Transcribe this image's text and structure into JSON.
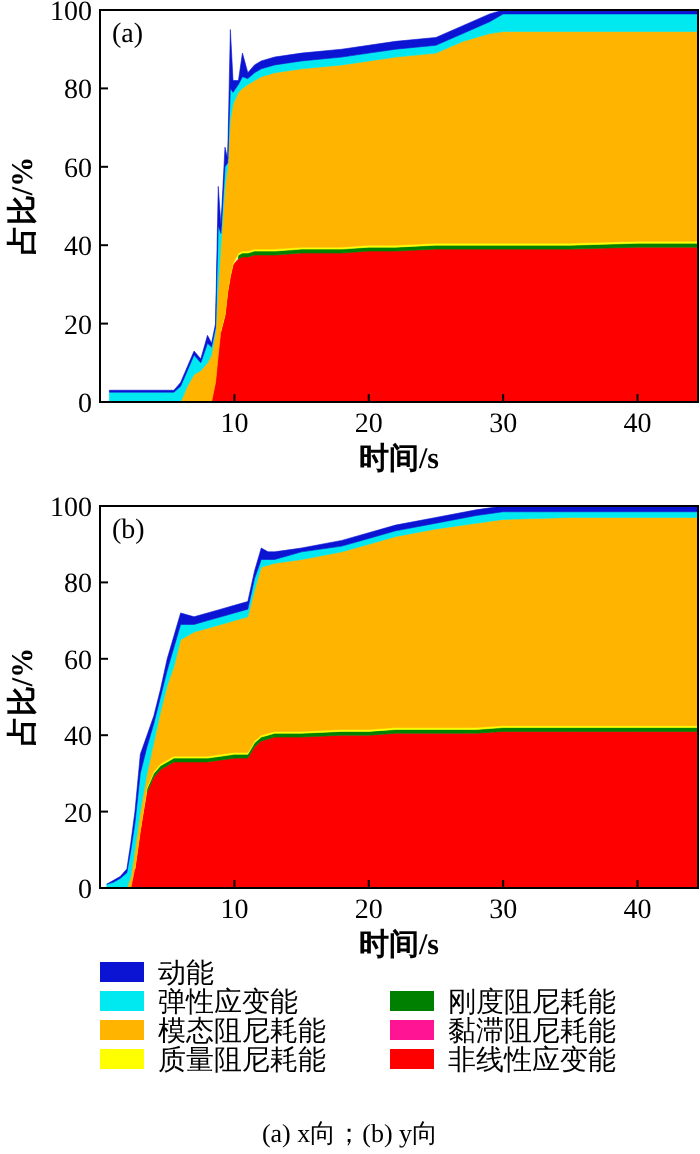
{
  "chart_data": [
    {
      "type": "area",
      "stacked": true,
      "xlabel": "时间/s",
      "ylabel": "占比/%",
      "annotations": [
        "(a)"
      ],
      "xlim": [
        0,
        44.5
      ],
      "ylim": [
        0,
        100
      ],
      "xticks": [
        10,
        20,
        30,
        40
      ],
      "yticks": [
        0,
        20,
        40,
        60,
        80,
        100
      ],
      "grid": false,
      "legend": false,
      "x": [
        0.7,
        2,
        4,
        5.5,
        6,
        6.5,
        7,
        7.5,
        8,
        8.3,
        8.6,
        8.8,
        9,
        9.3,
        9.5,
        9.7,
        9.9,
        10.3,
        10.6,
        11,
        11.5,
        12,
        13,
        15,
        18,
        20,
        22,
        25,
        27,
        29,
        30,
        35,
        40,
        44.5
      ],
      "series": [
        {
          "color": "#ff0000",
          "values": [
            0,
            0,
            0,
            0,
            0,
            0,
            0,
            0,
            0,
            0,
            5,
            12,
            18,
            22,
            28,
            32,
            35,
            36.5,
            37,
            37,
            37.5,
            37.5,
            37.5,
            38,
            38,
            38.5,
            38.5,
            39,
            39,
            39,
            39,
            39,
            39.5,
            39.5
          ]
        },
        {
          "values": [
            null,
            null,
            null,
            null,
            null,
            null,
            null,
            null,
            null,
            null,
            null,
            null,
            null,
            null,
            null,
            null,
            null,
            null,
            null,
            null,
            null,
            null,
            null,
            null,
            null,
            null,
            null,
            null,
            null,
            null,
            null,
            null,
            null,
            null
          ]
        },
        {
          "color": "#008000",
          "values": [
            null,
            null,
            null,
            null,
            null,
            null,
            null,
            null,
            null,
            null,
            null,
            null,
            null,
            null,
            null,
            null,
            null,
            1,
            1,
            1,
            1,
            1,
            1,
            1,
            1,
            1,
            1,
            1,
            1,
            1,
            1,
            1,
            1,
            1
          ]
        },
        {
          "color": "#ffff00",
          "values": [
            null,
            null,
            null,
            null,
            null,
            null,
            null,
            null,
            null,
            null,
            null,
            null,
            0.5,
            0.5,
            0.5,
            0.5,
            0.5,
            0.5,
            0.5,
            0.5,
            0.5,
            0.5,
            0.5,
            0.5,
            0.5,
            0.5,
            0.5,
            0.5,
            0.5,
            0.5,
            0.5,
            0.5,
            0.5,
            0.5
          ]
        },
        {
          "color": "#ffb400",
          "values": [
            0,
            0,
            0,
            0,
            0,
            4,
            7,
            8,
            10,
            12,
            13,
            18,
            21.5,
            32.5,
            31.5,
            39.5,
            40.5,
            41,
            41.5,
            42.5,
            43,
            44,
            45,
            45.5,
            46.5,
            47,
            48,
            48.5,
            51.5,
            53.5,
            54,
            54,
            53.5,
            53.5
          ]
        },
        {
          "color": "#00e8f0",
          "values": [
            2.5,
            2.5,
            2.5,
            2.5,
            4,
            4,
            5,
            2,
            5,
            2,
            1,
            15,
            3,
            5,
            1,
            8,
            3,
            2,
            3,
            1.5,
            2,
            2,
            2,
            2,
            2,
            2,
            2,
            2,
            2,
            3,
            4.5,
            4.5,
            4.5,
            4.5
          ]
        },
        {
          "color": "#0a14d2",
          "values": [
            0.5,
            0.5,
            0.5,
            0.5,
            1,
            1,
            1,
            1,
            2,
            1,
            1,
            10,
            2,
            5,
            1,
            15,
            3,
            1,
            6,
            1.5,
            2,
            2,
            2,
            2,
            2,
            2,
            2,
            2,
            2,
            2,
            1,
            1,
            1,
            1
          ]
        }
      ]
    },
    {
      "type": "area",
      "stacked": true,
      "xlabel": "时间/s",
      "ylabel": "占比/%",
      "annotations": [
        "(b)",
        "(a) x向；(b) y向"
      ],
      "xlim": [
        0,
        44.5
      ],
      "ylim": [
        0,
        100
      ],
      "xticks": [
        10,
        20,
        30,
        40
      ],
      "yticks": [
        0,
        20,
        40,
        60,
        80,
        100
      ],
      "grid": false,
      "legend": "bottom",
      "x": [
        0.5,
        1,
        1.5,
        2,
        2.3,
        2.6,
        3,
        3.5,
        4,
        4.5,
        5,
        5.5,
        6,
        7,
        8,
        9,
        10,
        11,
        11.5,
        12,
        12.5,
        13,
        15,
        18,
        20,
        22,
        25,
        28,
        30,
        35,
        40,
        44.5
      ],
      "series": [
        {
          "name": "非线性应变能",
          "color": "#ff0000",
          "values": [
            0,
            0,
            0,
            0,
            0,
            5,
            15,
            25,
            29,
            31,
            32,
            33,
            33,
            33,
            33,
            33.5,
            34,
            34,
            37,
            38.5,
            39,
            39.5,
            39.5,
            40,
            40,
            40.5,
            40.5,
            40.5,
            41,
            41,
            41,
            41
          ]
        },
        {
          "name": "黏滞阻尼耗能",
          "color": "#ff1493",
          "values": [
            null,
            null,
            null,
            null,
            null,
            null,
            null,
            null,
            null,
            null,
            null,
            null,
            null,
            null,
            null,
            null,
            null,
            null,
            null,
            null,
            null,
            null,
            null,
            null,
            null,
            null,
            null,
            null,
            null,
            null,
            null,
            null
          ]
        },
        {
          "name": "刚度阻尼耗能",
          "color": "#008000",
          "values": [
            null,
            null,
            null,
            null,
            null,
            null,
            null,
            1,
            1,
            1,
            1,
            1,
            1,
            1,
            1,
            1,
            1,
            1,
            1,
            1,
            1,
            1,
            1,
            1,
            1,
            1,
            1,
            1,
            1,
            1,
            1,
            1
          ]
        },
        {
          "name": "质量阻尼耗能",
          "color": "#ffff00",
          "values": [
            null,
            null,
            null,
            null,
            null,
            0.5,
            0.5,
            0.5,
            0.5,
            0.5,
            0.5,
            0.5,
            0.5,
            0.5,
            0.5,
            0.5,
            0.5,
            0.5,
            0.5,
            0.5,
            0.5,
            0.5,
            0.5,
            0.5,
            0.5,
            0.5,
            0.5,
            0.5,
            0.5,
            0.5,
            0.5,
            0.5
          ]
        },
        {
          "name": "模态阻尼耗能",
          "color": "#ffb400",
          "values": [
            0,
            0,
            0,
            0,
            3,
            4.5,
            4.5,
            3.5,
            7.5,
            13.5,
            19.5,
            23.5,
            30.5,
            32.5,
            33.5,
            34,
            34.5,
            35.5,
            39.5,
            44,
            44,
            44,
            45,
            46.5,
            48.5,
            50,
            52,
            53.5,
            54,
            54.5,
            54.5,
            54.5
          ]
        },
        {
          "name": "弹性应变能",
          "color": "#00e8f0",
          "values": [
            1,
            1.5,
            2.5,
            4,
            7,
            7,
            10,
            7,
            5,
            4,
            4,
            5,
            4,
            2,
            2,
            2,
            2,
            2,
            3,
            2,
            1.5,
            1,
            2,
            1.5,
            1.5,
            1.5,
            1.5,
            2,
            2,
            1.5,
            1.5,
            1.5
          ]
        },
        {
          "name": "动能",
          "color": "#0a14d2",
          "values": [
            0,
            0.5,
            0.5,
            1,
            2,
            3,
            5,
            3,
            2,
            2,
            3,
            3,
            3,
            2,
            2,
            2,
            2,
            2,
            2,
            3,
            2,
            2,
            1,
            1.5,
            1.5,
            1.5,
            1.5,
            1.5,
            1.5,
            1.5,
            1.5,
            1.5
          ]
        }
      ]
    }
  ]
}
